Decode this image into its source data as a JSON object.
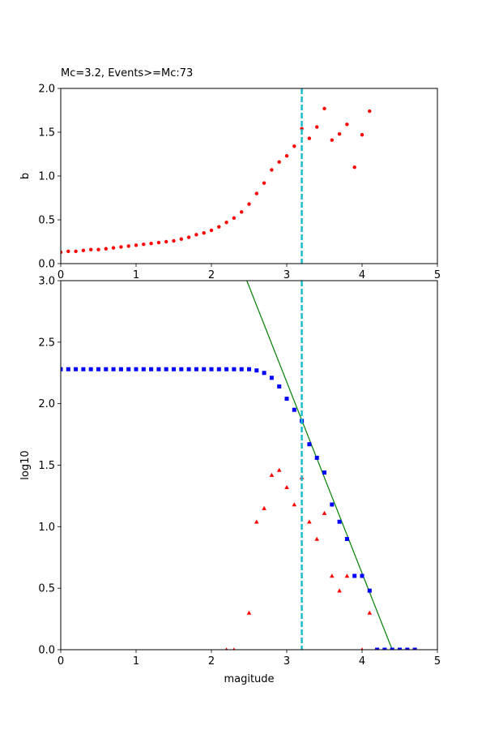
{
  "chart_data": [
    {
      "type": "scatter",
      "title": "Mc=3.2, Events>=Mc:73",
      "xlabel": "",
      "ylabel": "b",
      "xlim": [
        0,
        5
      ],
      "ylim": [
        0,
        2.0
      ],
      "xticks": [
        "0",
        "1",
        "2",
        "3",
        "4",
        "5"
      ],
      "yticks": [
        "0.0",
        "0.5",
        "1.0",
        "1.5",
        "2.0"
      ],
      "grid": false,
      "vline": {
        "x": 3.2,
        "color": "#17becf",
        "style": "dashed"
      },
      "series": [
        {
          "color": "#ff0000",
          "marker": "circle",
          "x": [
            0.0,
            0.1,
            0.2,
            0.3,
            0.4,
            0.5,
            0.6,
            0.7,
            0.8,
            0.9,
            1.0,
            1.1,
            1.2,
            1.3,
            1.4,
            1.5,
            1.6,
            1.7,
            1.8,
            1.9,
            2.0,
            2.1,
            2.2,
            2.3,
            2.4,
            2.5,
            2.6,
            2.7,
            2.8,
            2.9,
            3.0,
            3.1,
            3.2,
            3.3,
            3.4,
            3.5,
            3.6,
            3.7,
            3.8,
            3.9,
            4.0,
            4.1
          ],
          "y": [
            0.13,
            0.14,
            0.14,
            0.15,
            0.16,
            0.16,
            0.17,
            0.18,
            0.19,
            0.2,
            0.21,
            0.22,
            0.23,
            0.24,
            0.25,
            0.26,
            0.28,
            0.3,
            0.33,
            0.35,
            0.38,
            0.42,
            0.47,
            0.52,
            0.59,
            0.68,
            0.8,
            0.92,
            1.07,
            1.16,
            1.23,
            1.34,
            1.54,
            1.43,
            1.56,
            1.77,
            1.41,
            1.48,
            1.59,
            1.1,
            1.47,
            1.74
          ]
        }
      ]
    },
    {
      "type": "scatter",
      "title": "",
      "xlabel": "magitude",
      "ylabel": "log10",
      "xlim": [
        0,
        5
      ],
      "ylim": [
        0,
        3.0
      ],
      "xticks": [
        "0",
        "1",
        "2",
        "3",
        "4",
        "5"
      ],
      "yticks": [
        "0.0",
        "0.5",
        "1.0",
        "1.5",
        "2.0",
        "2.5",
        "3.0"
      ],
      "grid": false,
      "vline": {
        "x": 3.2,
        "color": "#17becf",
        "style": "dashed"
      },
      "fit_line": {
        "x": [
          2.47,
          4.4
        ],
        "y": [
          3.0,
          0.0
        ],
        "color": "#008000"
      },
      "series": [
        {
          "color": "#0000ff",
          "marker": "square",
          "x": [
            0.0,
            0.1,
            0.2,
            0.3,
            0.4,
            0.5,
            0.6,
            0.7,
            0.8,
            0.9,
            1.0,
            1.1,
            1.2,
            1.3,
            1.4,
            1.5,
            1.6,
            1.7,
            1.8,
            1.9,
            2.0,
            2.1,
            2.2,
            2.3,
            2.4,
            2.5,
            2.6,
            2.7,
            2.8,
            2.9,
            3.0,
            3.1,
            3.2,
            3.3,
            3.4,
            3.5,
            3.6,
            3.7,
            3.8,
            3.9,
            4.0,
            4.1,
            4.2,
            4.3,
            4.4,
            4.5,
            4.6,
            4.7
          ],
          "y": [
            2.28,
            2.28,
            2.28,
            2.28,
            2.28,
            2.28,
            2.28,
            2.28,
            2.28,
            2.28,
            2.28,
            2.28,
            2.28,
            2.28,
            2.28,
            2.28,
            2.28,
            2.28,
            2.28,
            2.28,
            2.28,
            2.28,
            2.28,
            2.28,
            2.28,
            2.28,
            2.27,
            2.25,
            2.21,
            2.14,
            2.04,
            1.95,
            1.86,
            1.67,
            1.56,
            1.44,
            1.18,
            1.04,
            0.9,
            0.6,
            0.6,
            0.48,
            0.0,
            0.0,
            0.0,
            0.0,
            0.0,
            0.0
          ]
        },
        {
          "color": "#ff0000",
          "marker": "triangle",
          "x": [
            2.2,
            2.3,
            2.5,
            2.6,
            2.7,
            2.8,
            2.9,
            3.0,
            3.1,
            3.2,
            3.3,
            3.4,
            3.5,
            3.6,
            3.7,
            3.8,
            4.0,
            4.1
          ],
          "y": [
            0.0,
            0.0,
            0.3,
            1.04,
            1.15,
            1.42,
            1.46,
            1.32,
            1.18,
            1.4,
            1.04,
            0.9,
            1.11,
            0.6,
            0.48,
            0.6,
            0.0,
            0.3
          ]
        }
      ]
    }
  ]
}
